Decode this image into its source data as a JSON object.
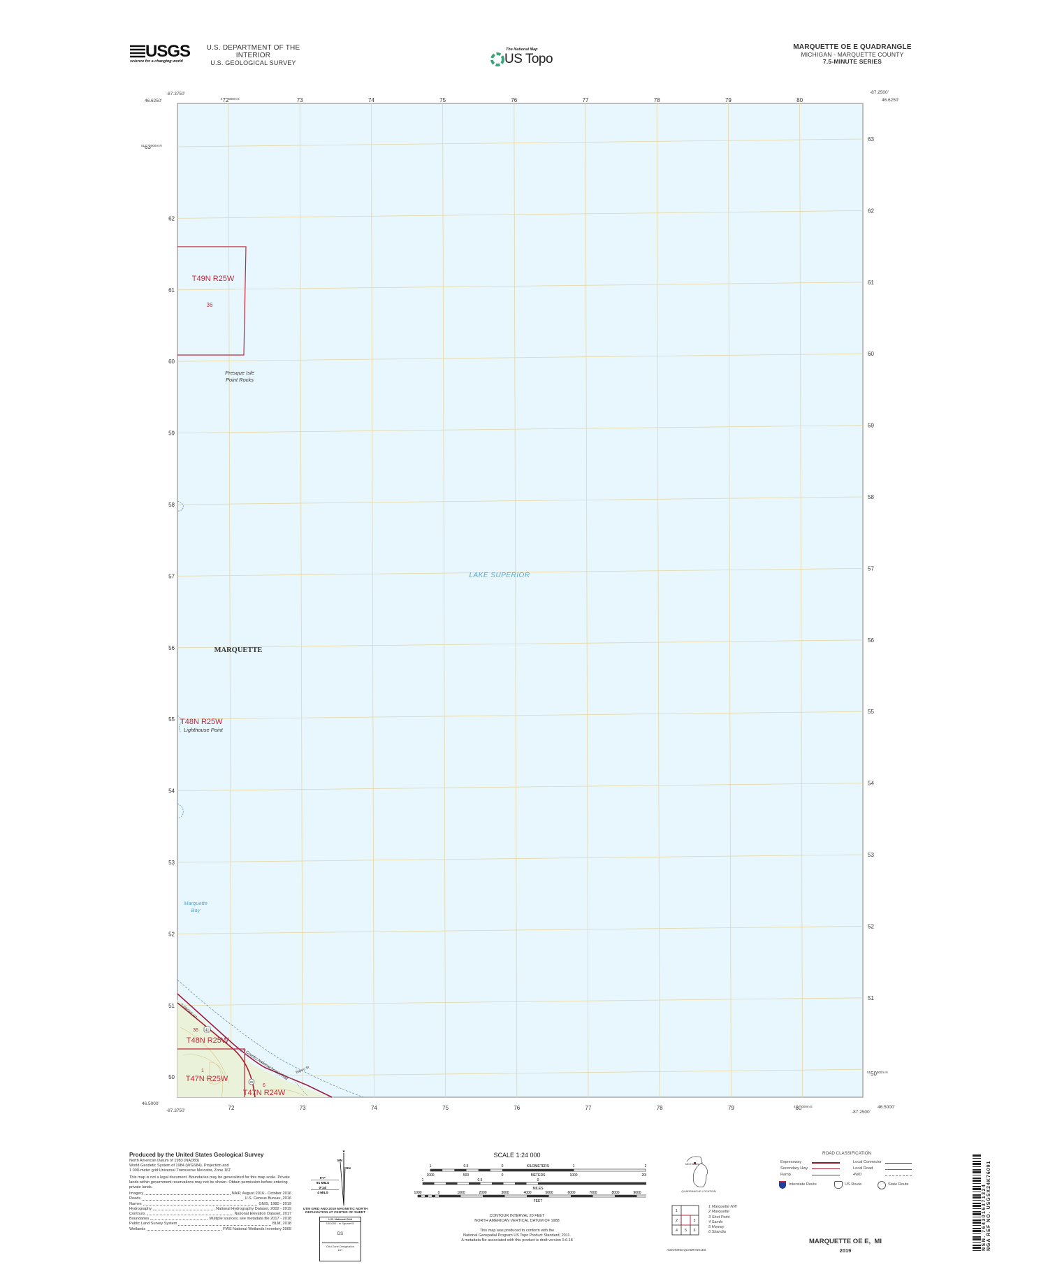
{
  "header": {
    "usgs_logo": "USGS",
    "usgs_tagline": "science for a changing world",
    "department": "U.S. DEPARTMENT OF THE INTERIOR",
    "survey": "U.S. GEOLOGICAL SURVEY",
    "national_map": "The National Map",
    "us_topo": "US Topo",
    "quad_title": "MARQUETTE OE E QUADRANGLE",
    "state_county": "MICHIGAN - MARQUETTE COUNTY",
    "series": "7.5-MINUTE SERIES"
  },
  "colors": {
    "water": "#e8f6fd",
    "land": "#eaf3d9",
    "grid": "#e9d9a8",
    "boundary": "#c0283c",
    "road": "#a0203a",
    "water_text": "#5aa7c9"
  },
  "map": {
    "corners": {
      "top_left_lon": "-87.3750'",
      "top_left_lat": "46.6250'",
      "top_right_lon": "-87.2500'",
      "top_right_lat": "46.6250'",
      "bottom_left_lat": "46.5000'",
      "bottom_left_lon": "-87.3750'",
      "bottom_right_lon": "-87.2500'",
      "bottom_right_lat": "46.5000'"
    },
    "easting_prefix": "4",
    "easting_first": "72",
    "easting_suffix": "000m E",
    "easting_last": "80",
    "eastings_top": [
      "73",
      "74",
      "75",
      "76",
      "77",
      "78",
      "79",
      "80"
    ],
    "eastings_bottom": [
      "72",
      "73",
      "74",
      "75",
      "76",
      "77",
      "78",
      "79"
    ],
    "northing_prefix": "51",
    "northing_first": "63",
    "northing_suffix": "000m N",
    "northing_last": "50",
    "northings_left": [
      "62",
      "61",
      "60",
      "59",
      "58",
      "57",
      "56",
      "55",
      "54",
      "53",
      "52",
      "51",
      "50"
    ],
    "northings_right": [
      "63",
      "62",
      "61",
      "60",
      "59",
      "58",
      "57",
      "56",
      "55",
      "54",
      "53",
      "52",
      "51"
    ],
    "labels": {
      "t49n_r25w": "T49N R25W",
      "sec36_top": "36",
      "presque_isle_1": "Presque Isle",
      "presque_isle_2": "Point Rocks",
      "lake_superior": "LAKE SUPERIOR",
      "marquette": "MARQUETTE",
      "t48n_r25w_mid": "T48N R25W",
      "lighthouse_point": "Lighthouse Point",
      "marquette_bay_1": "Marquette",
      "marquette_bay_2": "Bay",
      "s_front_st": "S FRONT ST",
      "sec36_bottom": "36",
      "us41": "41",
      "t48n_r25w_bottom": "T48N R25W",
      "sec1": "1",
      "t47n_r25w": "T47N R25W",
      "trail": "N Country National Scenic Trail",
      "bayou_st": "Bayou St",
      "m28": "28",
      "sec6": "6",
      "t47n_r24w": "T47N R24W"
    }
  },
  "credits": {
    "produced_by": "Produced by the United States Geological Survey",
    "datum": [
      "North American Datum of 1983 (NAD83)",
      "World Geodetic System of 1984 (WGS84).  Projection and",
      "1 000-meter grid:Universal Transverse Mercator, Zone 16T"
    ],
    "disclaimer": "This map is not a legal document. Boundaries may be generalized for this map scale. Private lands within government reservations may not be shown. Obtain permission before entering private lands.",
    "sources": [
      {
        "name": "Imagery",
        "value": "NAIP, August 2016 - October 2016"
      },
      {
        "name": "Roads",
        "value": "U.S. Census Bureau, 2016"
      },
      {
        "name": "Names",
        "value": "GNIS, 1980 - 2019"
      },
      {
        "name": "Hydrography",
        "value": "National Hydrography Dataset, 2002 - 2019"
      },
      {
        "name": "Contours",
        "value": "National Elevation Dataset, 2017"
      },
      {
        "name": "Boundaries",
        "value": "Multiple sources; see metadata file 2017 - 2018"
      },
      {
        "name": "Public Land Survey System",
        "value": "BLM, 2018"
      },
      {
        "name": "Wetlands",
        "value": "FWS National Wetlands Inventory 2005"
      }
    ]
  },
  "declination": {
    "mn": "MN",
    "gn": "GN",
    "angle1": "9°7'",
    "mils1": "91 MILS",
    "angle2": "0°14'",
    "mils2": "4 MILS",
    "caption1": "UTM GRID AND 2019 MAGNETIC NORTH",
    "caption2": "DECLINATION AT CENTER OF SHEET",
    "grid_title": "U.S. National Grid",
    "grid_square_label": "100,000 - m Square ID",
    "grid_square": "DS",
    "grid_zone_label": "Grid Zone Designation",
    "grid_zone": "16T"
  },
  "scale": {
    "title": "SCALE 1:24 000",
    "km_ticks": [
      "1",
      "0.5",
      "0",
      "1",
      "2"
    ],
    "km_label": "KILOMETERS",
    "m_ticks": [
      "1000",
      "500",
      "0",
      "1000",
      "2000"
    ],
    "m_label": "METERS",
    "mi_ticks": [
      "1",
      "0.5",
      "0",
      "1"
    ],
    "mi_label": "MILES",
    "ft_ticks": [
      "1000",
      "0",
      "1000",
      "2000",
      "3000",
      "4000",
      "5000",
      "6000",
      "7000",
      "8000",
      "9000",
      "10000"
    ],
    "ft_label": "FEET",
    "contour": "CONTOUR INTERVAL 20 FEET",
    "vdatum": "NORTH AMERICAN VERTICAL DATUM OF 1988",
    "conform1": "This map was produced to conform with the",
    "conform2": "National Geospatial Program US Topo Product Standard, 2011.",
    "conform3": "A metadata file associated with this product is draft version 0.6.18"
  },
  "location": {
    "state": "MICHIGAN",
    "caption": "QUADRANGLE LOCATION"
  },
  "adjoining": {
    "caption": "ADJOINING QUADRANGLES",
    "cells": [
      "1",
      "2",
      "3",
      "4",
      "5",
      "6"
    ],
    "names": [
      "1 Marquette NW",
      "2 Marquette",
      "3 Shot Point",
      "4 Sands",
      "5 Harvey",
      "6 Skandia"
    ]
  },
  "roads": {
    "title": "ROAD CLASSIFICATION",
    "expressway": "Expressway",
    "secondary": "Secondary Hwy",
    "ramp": "Ramp",
    "local_connector": "Local Connector",
    "local_road": "Local Road",
    "fourwd": "4WD",
    "interstate": "Interstate Route",
    "us_route": "US Route",
    "state_route": "State Route"
  },
  "footer": {
    "title": "MARQUETTE OE E,  MI",
    "year": "2019"
  },
  "barcode": {
    "nsn": "NSN.  7643016371324",
    "nga": "NGA REF NO. USGSX24K76091"
  }
}
